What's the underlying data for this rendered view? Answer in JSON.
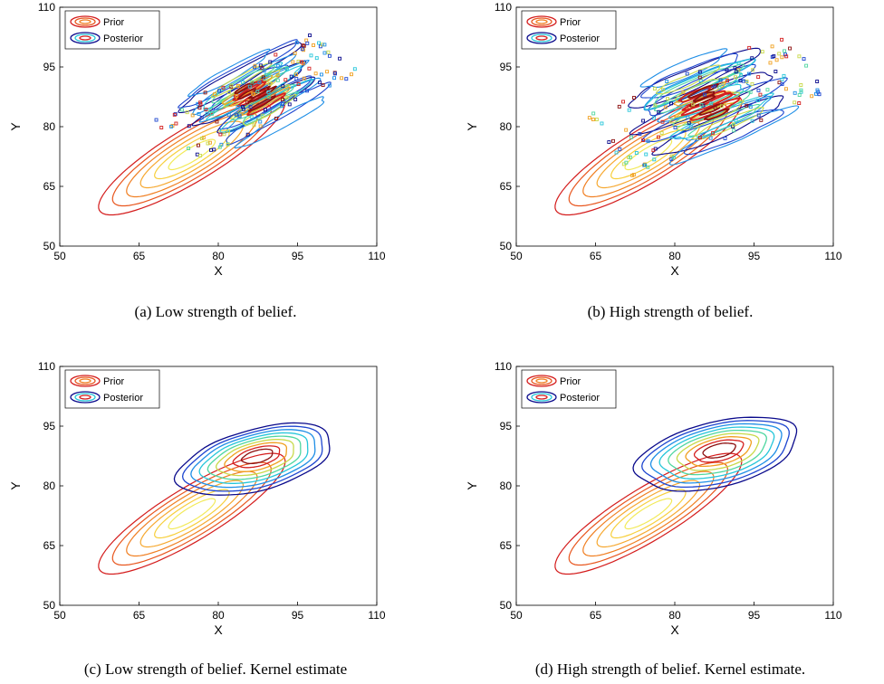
{
  "colors": {
    "prior_levels": [
      "#d41c1c",
      "#e8561e",
      "#f07f22",
      "#f6a830",
      "#f7cf3c",
      "#f2ea5a"
    ],
    "posterior_levels": [
      "#0a0a8c",
      "#1e46d0",
      "#1e8ee6",
      "#26c6da",
      "#4fd6a0",
      "#c8d94a",
      "#f0a020",
      "#d42020",
      "#8c1010"
    ]
  },
  "chart_data": [
    {
      "type": "contour",
      "panel": "a",
      "caption": "(a) Low strength of belief.",
      "xlabel": "X",
      "ylabel": "Y",
      "xlim": [
        50,
        110
      ],
      "ylim": [
        50,
        110
      ],
      "xticks": [
        "50",
        "65",
        "80",
        "95",
        "110"
      ],
      "yticks": [
        "50",
        "65",
        "80",
        "95",
        "110"
      ],
      "legend": [
        "Prior",
        "Posterior"
      ],
      "legend_position": "top-left",
      "prior": {
        "center": [
          75,
          73
        ],
        "angle_deg": 40,
        "outer_axes": [
          22.5,
          6
        ]
      },
      "posterior": {
        "kind": "histogram",
        "center": [
          87,
          88
        ],
        "angle_deg": 37,
        "axes": [
          16,
          5.2
        ]
      }
    },
    {
      "type": "contour",
      "panel": "b",
      "caption": "(b) High strength of belief.",
      "xlabel": "X",
      "ylabel": "Y",
      "xlim": [
        50,
        110
      ],
      "ylim": [
        50,
        110
      ],
      "xticks": [
        "50",
        "65",
        "80",
        "95",
        "110"
      ],
      "yticks": [
        "50",
        "65",
        "80",
        "95",
        "110"
      ],
      "legend": [
        "Prior",
        "Posterior"
      ],
      "legend_position": "top-left",
      "prior": {
        "center": [
          75,
          73
        ],
        "angle_deg": 40,
        "outer_axes": [
          22.5,
          6
        ]
      },
      "posterior": {
        "kind": "histogram",
        "center": [
          86,
          86
        ],
        "angle_deg": 30,
        "axes": [
          18,
          7
        ]
      }
    },
    {
      "type": "contour",
      "panel": "c",
      "caption": "(c) Low strength of belief. Kernel estimate",
      "xlabel": "X",
      "ylabel": "Y",
      "xlim": [
        50,
        110
      ],
      "ylim": [
        50,
        110
      ],
      "xticks": [
        "50",
        "65",
        "80",
        "95",
        "110"
      ],
      "yticks": [
        "50",
        "65",
        "80",
        "95",
        "110"
      ],
      "legend": [
        "Prior",
        "Posterior"
      ],
      "legend_position": "top-left",
      "prior": {
        "center": [
          75,
          73
        ],
        "angle_deg": 40,
        "outer_axes": [
          22.5,
          6
        ]
      },
      "posterior": {
        "kind": "kernel",
        "center": [
          87,
          86.5
        ],
        "angle_deg": 22,
        "axes": [
          15.5,
          7.5
        ]
      }
    },
    {
      "type": "contour",
      "panel": "d",
      "caption": "(d) High strength of belief. Kernel estimate.",
      "xlabel": "X",
      "ylabel": "Y",
      "xlim": [
        50,
        110
      ],
      "ylim": [
        50,
        110
      ],
      "xticks": [
        "50",
        "65",
        "80",
        "95",
        "110"
      ],
      "yticks": [
        "50",
        "65",
        "80",
        "95",
        "110"
      ],
      "legend": [
        "Prior",
        "Posterior"
      ],
      "legend_position": "top-left",
      "prior": {
        "center": [
          75,
          73
        ],
        "angle_deg": 40,
        "outer_axes": [
          22.5,
          6
        ]
      },
      "posterior": {
        "kind": "kernel",
        "center": [
          88,
          88
        ],
        "angle_deg": 20,
        "axes": [
          16,
          8
        ]
      }
    }
  ]
}
